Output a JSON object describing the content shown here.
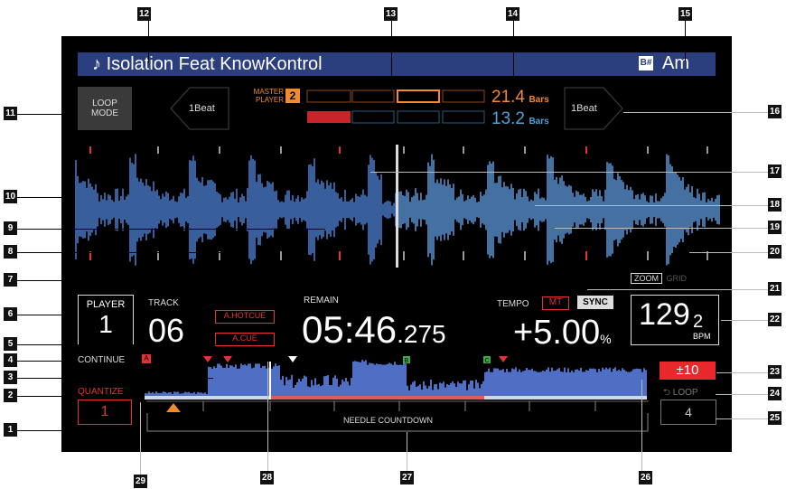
{
  "track": {
    "title": "Isolation Feat KnowKontrol",
    "key": "Am",
    "key_icon": "B#"
  },
  "loop_mode": {
    "line1": "LOOP",
    "line2": "MODE"
  },
  "beat_left": "1Beat",
  "beat_right": "1Beat",
  "master_player": {
    "line1": "MASTER",
    "line2": "PLAYER",
    "number": "2"
  },
  "bars": {
    "top_value": "21.4",
    "top_unit": "Bars",
    "bottom_value": "13.2",
    "bottom_unit": "Bars"
  },
  "player": {
    "label": "PLAYER",
    "number": "1"
  },
  "track_no": {
    "label": "TRACK",
    "value": "06"
  },
  "a_hotcue": "A.HOTCUE",
  "a_cue": "A.CUE",
  "remain": {
    "label": "REMAIN",
    "main": "05:46",
    "ms": ".275"
  },
  "tempo": {
    "label": "TEMPO",
    "mt": "MT",
    "sync": "SYNC",
    "value": "+5.00",
    "unit": "%"
  },
  "zoom": {
    "zoom": "ZOOM",
    "grid": "GRID"
  },
  "bpm": {
    "int": "129",
    "dec": "2",
    "unit": "BPM"
  },
  "continue": "CONTINUE",
  "cue_a": "A",
  "cue_b": "B",
  "cue_c": "C",
  "quantize": {
    "label": "QUANTIZE",
    "value": "1"
  },
  "range": "±10",
  "loop": {
    "label": "LOOP",
    "value": "4"
  },
  "needle": "NEEDLE COUNTDOWN",
  "callouts": [
    "1",
    "2",
    "3",
    "4",
    "5",
    "6",
    "7",
    "8",
    "9",
    "10",
    "11",
    "12",
    "13",
    "14",
    "15",
    "16",
    "17",
    "18",
    "19",
    "20",
    "21",
    "22",
    "23",
    "24",
    "25",
    "26",
    "27",
    "28",
    "29"
  ]
}
